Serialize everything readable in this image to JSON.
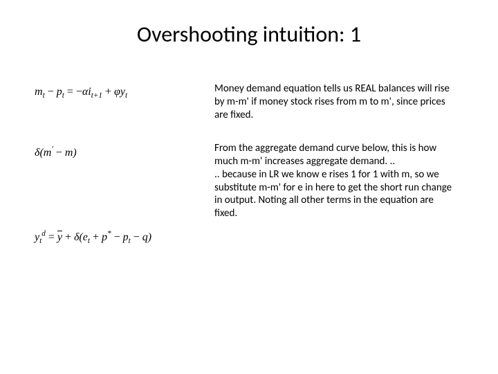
{
  "title": "Overshooting intuition:  1",
  "title_fontsize": 32,
  "title_color": "#000000",
  "body_fontsize": 15,
  "body_color": "#000000",
  "eq_fontsize": 16,
  "rows": [
    {
      "eq_html": "m<sub>t</sub> <span class='op'>&minus;</span> p<sub>t</sub> <span class='op'>=</span> <span class='op'>&minus;</span>&alpha;i<sub>t+1</sub> <span class='op'>+</span> &phi;y<sub>t</sub>",
      "text": "Money demand equation tells us REAL balances will rise by m-m' if money stock rises from m to m', since prices are fixed."
    },
    {
      "eq_html": "&delta;(m<sup>&prime;</sup> <span class='op'>&minus;</span> m)",
      "text": "From the aggregate demand curve below, this is how much m-m' increases aggregate demand. ..\n.. because in LR we know e rises 1 for 1 with m, so we substitute m-m' for e in here to get the short run change in output.  Noting all other terms in the equation are fixed."
    },
    {
      "eq_html": "y<sub>t</sub><sup>d</sup> <span class='op'>=</span> <span class='bar'>y</span> <span class='op'>+</span> &delta;(e<sub>t</sub> <span class='op'>+</span> p<sup>*</sup> <span class='op'>&minus;</span> p<sub>t</sub> <span class='op'>&minus;</span> q)",
      "text": ""
    }
  ]
}
